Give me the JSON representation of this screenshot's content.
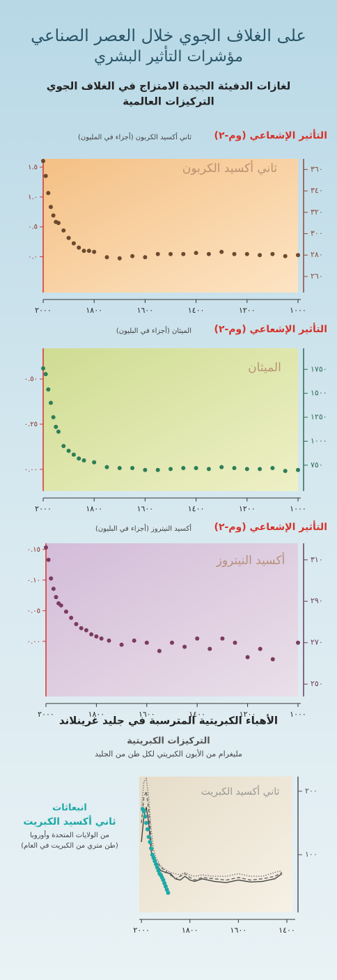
{
  "header": {
    "title": [
      "على الغلاف الجوي خلال العصر الصناعي",
      "مؤشرات التأثير البشري"
    ],
    "subtitle": [
      "لغازات الدفيئة الجيدة الامتزاج في الغلاف الجوي",
      "التركيزات العالمية"
    ]
  },
  "chart_data": [
    {
      "type": "scatter",
      "title": "ثاني أكسيد الكربون",
      "y_label": "ثاني أكسيد الكربون (أجزاء في المليون)",
      "y2_label": "التأثير الإشعاعي (وم-٢)",
      "color": "#6b4a2e",
      "x": [
        2000,
        1990,
        1980,
        1970,
        1960,
        1950,
        1940,
        1920,
        1900,
        1880,
        1860,
        1840,
        1820,
        1800,
        1750,
        1700,
        1650,
        1600,
        1550,
        1500,
        1450,
        1400,
        1350,
        1300,
        1250,
        1200,
        1150,
        1100,
        1050,
        1000
      ],
      "values": [
        368,
        354,
        338,
        325,
        317,
        311,
        310,
        303,
        296,
        291,
        287,
        284,
        284,
        283,
        278,
        277,
        279,
        278,
        281,
        281,
        281,
        282,
        281,
        283,
        281,
        281,
        280,
        281,
        279,
        280
      ],
      "xlim": [
        2000,
        1000
      ],
      "xticks": [
        {
          "value": 2000,
          "label": "٢٠٠٠"
        },
        {
          "value": 1800,
          "label": "١٨٠٠"
        },
        {
          "value": 1600,
          "label": "١٦٠٠"
        },
        {
          "value": 1400,
          "label": "١٤٠٠"
        },
        {
          "value": 1200,
          "label": "١٢٠٠"
        },
        {
          "value": 1000,
          "label": "١٠٠٠"
        }
      ],
      "ylim": [
        245,
        370
      ],
      "yticks": [
        {
          "value": 360,
          "label": "٣٦٠"
        },
        {
          "value": 340,
          "label": "٣٤٠"
        },
        {
          "value": 320,
          "label": "٣٢٠"
        },
        {
          "value": 300,
          "label": "٣٠٠"
        },
        {
          "value": 280,
          "label": "٢٨٠"
        },
        {
          "value": 260,
          "label": "٢٦٠"
        }
      ],
      "y2lim": [
        -0.6,
        1.64
      ],
      "y2ticks": [
        {
          "value": 1.5,
          "label": "١.٥"
        },
        {
          "value": 1.0,
          "label": "١.٠"
        },
        {
          "value": 0.5,
          "label": "٠.٥"
        },
        {
          "value": 0,
          "label": "٠.٠"
        }
      ]
    },
    {
      "type": "scatter",
      "title": "الميثان",
      "y_label": "الميثان (أجزاء في البليون)",
      "y2_label": "التأثير الإشعاعي (وم-٢)",
      "color": "#2d7d57",
      "x": [
        2000,
        1990,
        1980,
        1970,
        1960,
        1950,
        1940,
        1920,
        1900,
        1880,
        1860,
        1840,
        1800,
        1750,
        1700,
        1650,
        1600,
        1550,
        1500,
        1450,
        1400,
        1350,
        1300,
        1250,
        1200,
        1150,
        1100,
        1050,
        1000
      ],
      "values": [
        1760,
        1700,
        1540,
        1400,
        1250,
        1150,
        1100,
        950,
        900,
        860,
        820,
        800,
        780,
        730,
        720,
        720,
        700,
        700,
        710,
        720,
        720,
        710,
        730,
        720,
        710,
        710,
        720,
        690,
        700
      ],
      "xlim": [
        2000,
        1000
      ],
      "xticks": [
        {
          "value": 2000,
          "label": "٢٠٠٠"
        },
        {
          "value": 1800,
          "label": "١٨٠٠"
        },
        {
          "value": 1600,
          "label": "١٦٠٠"
        },
        {
          "value": 1400,
          "label": "١٤٠٠"
        },
        {
          "value": 1200,
          "label": "١٢٠٠"
        },
        {
          "value": 1000,
          "label": "١٠٠٠"
        }
      ],
      "ylim": [
        480,
        1970
      ],
      "yticks": [
        {
          "value": 1750,
          "label": "١٧٥٠"
        },
        {
          "value": 1500,
          "label": "١٥٠٠"
        },
        {
          "value": 1250,
          "label": "١٢٥٠"
        },
        {
          "value": 1000,
          "label": "١٠٠٠"
        },
        {
          "value": 750,
          "label": "٧٥٠"
        }
      ],
      "y2lim": [
        -0.12,
        0.67
      ],
      "y2ticks": [
        {
          "value": 0.5,
          "label": "٠.٥٠"
        },
        {
          "value": 0.25,
          "label": "٠.٢٥"
        },
        {
          "value": 0,
          "label": "٠.٠٠"
        }
      ]
    },
    {
      "type": "scatter",
      "title": "أكسيد النيتروز",
      "y_label": "أكسيد النيتروز (أجزاء في البليون)",
      "y2_label": "التأثير الإشعاعي (وم-٢)",
      "color": "#7a3b5e",
      "x": [
        2000,
        1990,
        1980,
        1970,
        1960,
        1950,
        1940,
        1920,
        1900,
        1880,
        1860,
        1840,
        1820,
        1800,
        1780,
        1750,
        1700,
        1650,
        1600,
        1550,
        1500,
        1450,
        1400,
        1350,
        1300,
        1250,
        1200,
        1150,
        1100,
        1000
      ],
      "values": [
        316,
        310,
        301,
        296,
        292,
        289,
        288,
        285,
        282,
        279,
        277,
        276,
        274,
        273,
        272,
        271,
        269,
        271,
        270,
        266,
        270,
        268,
        272,
        267,
        272,
        270,
        263,
        267,
        262,
        270
      ],
      "xlim": [
        2000,
        1000
      ],
      "xticks": [
        {
          "value": 2000,
          "label": "٢٠٠٠"
        },
        {
          "value": 1800,
          "label": "١٨٠٠"
        },
        {
          "value": 1600,
          "label": "١٦٠٠"
        },
        {
          "value": 1400,
          "label": "١٤٠٠"
        },
        {
          "value": 1200,
          "label": "١٢٠٠"
        },
        {
          "value": 1000,
          "label": "١٠٠٠"
        }
      ],
      "ylim": [
        244,
        318
      ],
      "yticks": [
        {
          "value": 310,
          "label": "٣١٠"
        },
        {
          "value": 290,
          "label": "٢٩٠"
        },
        {
          "value": 270,
          "label": "٢٧٠"
        },
        {
          "value": 250,
          "label": "٢٥٠"
        }
      ],
      "y2lim": [
        -0.09,
        0.16
      ],
      "y2ticks": [
        {
          "value": 0.15,
          "label": "٠.١٥"
        },
        {
          "value": 0.1,
          "label": "٠.١٠"
        },
        {
          "value": 0.05,
          "label": "٠.٠٥"
        },
        {
          "value": 0,
          "label": "٠.٠٠"
        }
      ]
    },
    {
      "type": "line",
      "heading": "الأهباء الكبريتية المترسبة في جليد غرينلاند",
      "subtitle": "التركيزات الكبريتية",
      "y_label": "مليغرام من الأيون الكبريتي لكل طن من الجليد",
      "title": "ثاني أكسيد الكبريت",
      "x": [
        2000,
        1990,
        1980,
        1970,
        1960,
        1950,
        1940,
        1920,
        1900,
        1880,
        1860,
        1840,
        1820,
        1800,
        1780,
        1750,
        1700,
        1650,
        1600,
        1550,
        1500,
        1450,
        1420
      ],
      "series": [
        {
          "color": "#444444",
          "dash": "solid",
          "values": [
            120,
            160,
            175,
            150,
            105,
            95,
            85,
            75,
            72,
            70,
            62,
            60,
            66,
            60,
            58,
            62,
            58,
            56,
            60,
            57,
            58,
            62,
            70
          ]
        },
        {
          "color": "#666666",
          "dash": "dashed",
          "values": [
            150,
            190,
            200,
            170,
            120,
            100,
            90,
            80,
            74,
            68,
            62,
            66,
            70,
            64,
            60,
            64,
            62,
            60,
            64,
            60,
            62,
            66,
            72
          ]
        },
        {
          "color": "#777777",
          "dash": "dotted",
          "values": [
            170,
            215,
            220,
            190,
            140,
            110,
            95,
            82,
            76,
            72,
            70,
            68,
            72,
            68,
            66,
            68,
            66,
            66,
            70,
            66,
            66,
            72,
            75
          ]
        }
      ],
      "emissions": {
        "type": "scatter",
        "color": "#1fa9a6",
        "label": [
          "انبعاثات",
          "ثاني أكسيد الكبريت",
          "من الولايات المتحدة وأوروبا",
          "(طن متري من الكبريت في العام)"
        ],
        "x": [
          1995,
          1990,
          1985,
          1980,
          1975,
          1970,
          1965,
          1960,
          1955,
          1950,
          1945,
          1940,
          1935,
          1930,
          1925,
          1920,
          1915,
          1910,
          1905,
          1900,
          1895,
          1890
        ],
        "values": [
          172,
          168,
          160,
          150,
          140,
          128,
          120,
          110,
          100,
          95,
          90,
          85,
          80,
          75,
          70,
          68,
          64,
          60,
          55,
          50,
          45,
          40
        ]
      },
      "xlim": [
        2009,
        1377
      ],
      "xticks": [
        {
          "value": 2000,
          "label": "٢٠٠٠"
        },
        {
          "value": 1800,
          "label": "١٨٠٠"
        },
        {
          "value": 1600,
          "label": "١٦٠٠"
        },
        {
          "value": 1400,
          "label": "١٤٠٠"
        }
      ],
      "ylim": [
        9,
        223
      ],
      "yticks": [
        {
          "value": 200,
          "label": "٢٠٠"
        },
        {
          "value": 100,
          "label": "١٠٠"
        }
      ]
    }
  ]
}
